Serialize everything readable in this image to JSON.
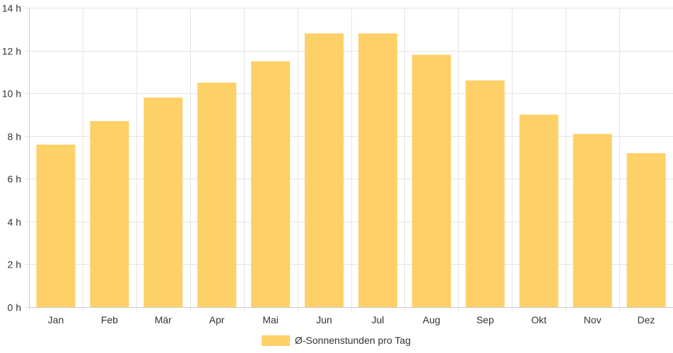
{
  "chart_data": {
    "type": "bar",
    "categories": [
      "Jan",
      "Feb",
      "Mär",
      "Apr",
      "Mai",
      "Jun",
      "Jul",
      "Aug",
      "Sep",
      "Okt",
      "Nov",
      "Dez"
    ],
    "series": [
      {
        "name": "Ø-Sonnenstunden pro Tag",
        "values": [
          7.6,
          8.7,
          9.8,
          10.5,
          11.5,
          12.8,
          12.8,
          11.8,
          10.6,
          9.0,
          8.1,
          7.2
        ]
      }
    ],
    "y_ticks": [
      "0 h",
      "2 h",
      "4 h",
      "6 h",
      "8 h",
      "10 h",
      "12 h",
      "14 h"
    ],
    "ylim": [
      0,
      14
    ],
    "grid": true,
    "legend_position": "bottom",
    "colors": {
      "bar_fill": "#fdd068",
      "grid": "#e5e5e5",
      "axis": "#cccccc",
      "text": "#333333"
    }
  }
}
